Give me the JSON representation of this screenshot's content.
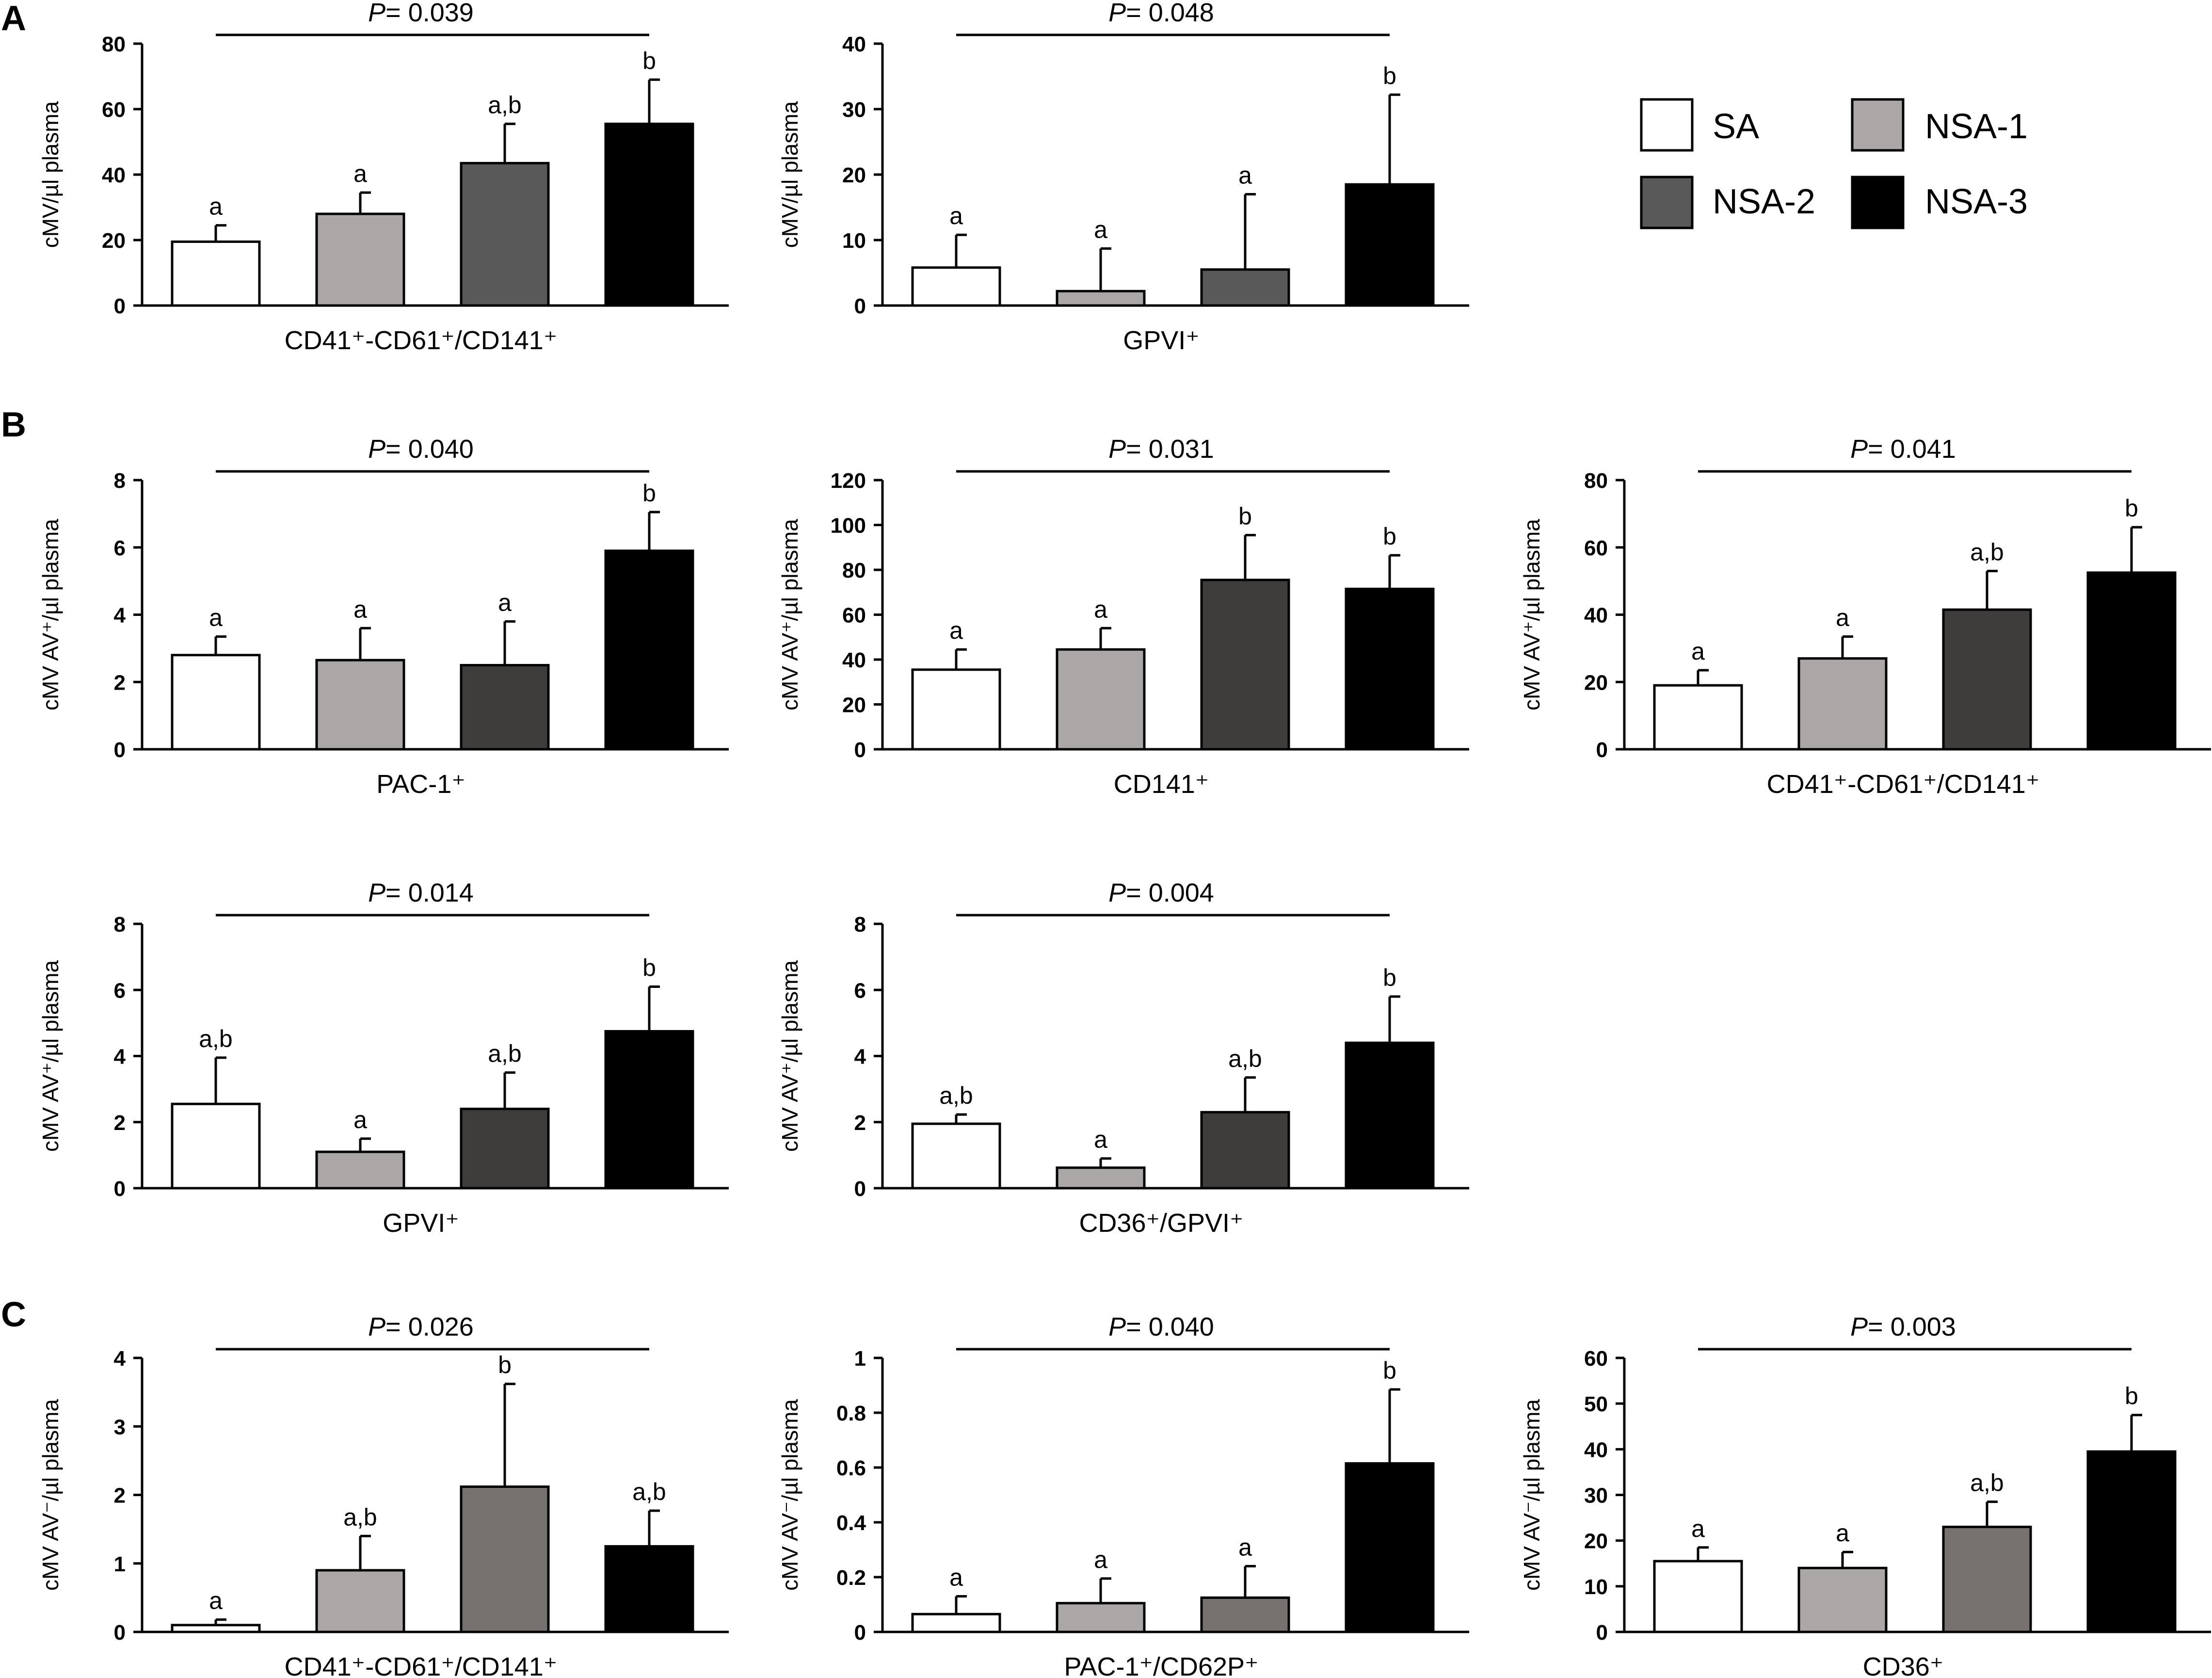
{
  "groups": [
    {
      "name": "SA",
      "color": "#ffffff"
    },
    {
      "name": "NSA-1",
      "color": "#aaa7a6"
    },
    {
      "name": "NSA-2",
      "color": "#595959"
    },
    {
      "name": "NSA-3",
      "color": "#000000"
    }
  ],
  "panel_labels": [
    "A",
    "B",
    "C"
  ],
  "chart_data": [
    {
      "type": "bar",
      "panel": "A",
      "title": "",
      "categories": [
        "SA",
        "NSA-1",
        "NSA-2",
        "NSA-3"
      ],
      "values": [
        19.5,
        28,
        43.5,
        55.5
      ],
      "errors": [
        5,
        6.5,
        12,
        13.5
      ],
      "sig": [
        "a",
        "a",
        "a,b",
        "b"
      ],
      "p_prefix": "P",
      "p_value": "= 0.039",
      "xlabel": "CD41⁺-CD61⁺/CD141⁺",
      "ylabel": "cMV/µl plasma",
      "ylim": [
        0,
        80
      ],
      "yticks": [
        "0",
        "20",
        "40",
        "60",
        "80"
      ],
      "colors": [
        "#ffffff",
        "#aaa7a6",
        "#595959",
        "#000000"
      ]
    },
    {
      "type": "bar",
      "panel": "A",
      "title": "",
      "categories": [
        "SA",
        "NSA-1",
        "NSA-2",
        "NSA-3"
      ],
      "values": [
        5.8,
        2.2,
        5.5,
        18.5
      ],
      "errors": [
        5,
        6.5,
        11.5,
        13.7
      ],
      "sig": [
        "a",
        "a",
        "a",
        "b"
      ],
      "p_prefix": "P",
      "p_value": "= 0.048",
      "xlabel": "GPVI⁺",
      "ylabel": "cMV/µl plasma",
      "ylim": [
        0,
        40
      ],
      "yticks": [
        "0",
        "10",
        "20",
        "30",
        "40"
      ],
      "colors": [
        "#ffffff",
        "#aaa7a6",
        "#595959",
        "#000000"
      ]
    },
    {
      "type": "bar",
      "panel": "B",
      "title": "",
      "categories": [
        "SA",
        "NSA-1",
        "NSA-2",
        "NSA-3"
      ],
      "values": [
        2.8,
        2.65,
        2.5,
        5.9
      ],
      "errors": [
        0.55,
        0.95,
        1.3,
        1.15
      ],
      "sig": [
        "a",
        "a",
        "a",
        "b"
      ],
      "p_prefix": "P",
      "p_value": "= 0.040",
      "xlabel": "PAC-1⁺",
      "ylabel": "cMV AV⁺/µl plasma",
      "ylim": [
        0,
        8
      ],
      "yticks": [
        "0",
        "2",
        "4",
        "6",
        "8"
      ],
      "colors": [
        "#ffffff",
        "#aaa7a6",
        "#3f3c3c",
        "#000000"
      ]
    },
    {
      "type": "bar",
      "panel": "B",
      "title": "",
      "categories": [
        "SA",
        "NSA-1",
        "NSA-2",
        "NSA-3"
      ],
      "values": [
        35.5,
        44.5,
        75.5,
        71.5
      ],
      "errors": [
        9,
        9.5,
        20,
        15
      ],
      "sig": [
        "a",
        "a",
        "b",
        "b"
      ],
      "p_prefix": "P",
      "p_value": "= 0.031",
      "xlabel": "CD141⁺",
      "ylabel": "cMV AV⁺/µl plasma",
      "ylim": [
        0,
        120
      ],
      "yticks": [
        "0",
        "20",
        "40",
        "60",
        "80",
        "100",
        "120"
      ],
      "colors": [
        "#ffffff",
        "#aaa7a6",
        "#3f3c3c",
        "#000000"
      ]
    },
    {
      "type": "bar",
      "panel": "B",
      "title": "",
      "categories": [
        "SA",
        "NSA-1",
        "NSA-2",
        "NSA-3"
      ],
      "values": [
        19,
        27,
        41.5,
        52.5
      ],
      "errors": [
        4.5,
        6.5,
        11.5,
        13.5
      ],
      "sig": [
        "a",
        "a",
        "a,b",
        "b"
      ],
      "p_prefix": "P",
      "p_value": "= 0.041",
      "xlabel": "CD41⁺-CD61⁺/CD141⁺",
      "ylabel": "cMV AV⁺/µl plasma",
      "ylim": [
        0,
        80
      ],
      "yticks": [
        "0",
        "20",
        "40",
        "60",
        "80"
      ],
      "colors": [
        "#ffffff",
        "#aaa7a6",
        "#3f3c3c",
        "#000000"
      ]
    },
    {
      "type": "bar",
      "panel": "B",
      "title": "",
      "categories": [
        "SA",
        "NSA-1",
        "NSA-2",
        "NSA-3"
      ],
      "values": [
        2.55,
        1.1,
        2.4,
        4.75
      ],
      "errors": [
        1.4,
        0.4,
        1.1,
        1.35
      ],
      "sig": [
        "a,b",
        "a",
        "a,b",
        "b"
      ],
      "p_prefix": "P",
      "p_value": "= 0.014",
      "xlabel": "GPVI⁺",
      "ylabel": "cMV AV⁺/µl plasma",
      "ylim": [
        0,
        8
      ],
      "yticks": [
        "0",
        "2",
        "4",
        "6",
        "8"
      ],
      "colors": [
        "#ffffff",
        "#aaa7a6",
        "#3f3c3c",
        "#000000"
      ]
    },
    {
      "type": "bar",
      "panel": "B",
      "title": "",
      "categories": [
        "SA",
        "NSA-1",
        "NSA-2",
        "NSA-3"
      ],
      "values": [
        1.95,
        0.62,
        2.3,
        4.4
      ],
      "errors": [
        0.28,
        0.28,
        1.05,
        1.4
      ],
      "sig": [
        "a,b",
        "a",
        "a,b",
        "b"
      ],
      "p_prefix": "P",
      "p_value": "= 0.004",
      "xlabel": "CD36⁺/GPVI⁺",
      "ylabel": "cMV AV⁺/µl plasma",
      "ylim": [
        0,
        8
      ],
      "yticks": [
        "0",
        "2",
        "4",
        "6",
        "8"
      ],
      "colors": [
        "#ffffff",
        "#aaa7a6",
        "#3f3c3c",
        "#000000"
      ]
    },
    {
      "type": "bar",
      "panel": "C",
      "title": "",
      "categories": [
        "SA",
        "NSA-1",
        "NSA-2",
        "NSA-3"
      ],
      "values": [
        0.1,
        0.9,
        2.12,
        1.25
      ],
      "errors": [
        0.08,
        0.5,
        1.5,
        0.52
      ],
      "sig": [
        "a",
        "a,b",
        "b",
        "a,b"
      ],
      "p_prefix": "P",
      "p_value": "= 0.026",
      "xlabel": "CD41⁺-CD61⁺/CD141⁺",
      "ylabel": "cMV AV⁻/µl plasma",
      "ylim": [
        0,
        4
      ],
      "yticks": [
        "0",
        "1",
        "2",
        "3",
        "4"
      ],
      "colors": [
        "#ffffff",
        "#aaa7a6",
        "#777170",
        "#000000"
      ]
    },
    {
      "type": "bar",
      "panel": "C",
      "title": "",
      "categories": [
        "SA",
        "NSA-1",
        "NSA-2",
        "NSA-3"
      ],
      "values": [
        0.065,
        0.105,
        0.125,
        0.615
      ],
      "errors": [
        0.065,
        0.09,
        0.115,
        0.27
      ],
      "sig": [
        "a",
        "a",
        "a",
        "b"
      ],
      "p_prefix": "P",
      "p_value": "= 0.040",
      "xlabel": "PAC-1⁺/CD62P⁺",
      "ylabel": "cMV AV⁻/µl plasma",
      "ylim": [
        0,
        1
      ],
      "yticks": [
        "0",
        "0.2",
        "0.4",
        "0.6",
        "0.8",
        "1"
      ],
      "colors": [
        "#ffffff",
        "#aaa7a6",
        "#777170",
        "#000000"
      ]
    },
    {
      "type": "bar",
      "panel": "C",
      "title": "",
      "categories": [
        "SA",
        "NSA-1",
        "NSA-2",
        "NSA-3"
      ],
      "values": [
        15.5,
        14,
        23,
        39.5
      ],
      "errors": [
        3,
        3.5,
        5.5,
        8
      ],
      "sig": [
        "a",
        "a",
        "a,b",
        "b"
      ],
      "p_prefix": "P",
      "p_value": "= 0.003",
      "xlabel": "CD36⁺",
      "ylabel": "cMV AV⁻/µl plasma",
      "ylim": [
        0,
        60
      ],
      "yticks": [
        "0",
        "10",
        "20",
        "30",
        "40",
        "50",
        "60"
      ],
      "colors": [
        "#ffffff",
        "#aaa7a6",
        "#777170",
        "#000000"
      ]
    }
  ]
}
